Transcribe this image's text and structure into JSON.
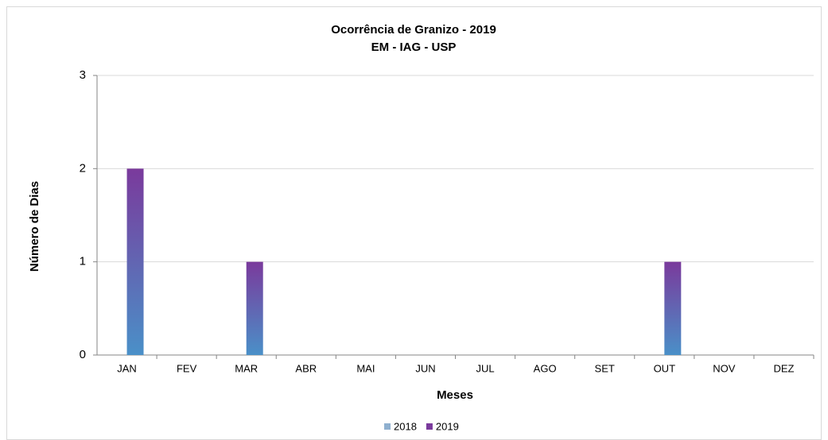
{
  "chart_data": {
    "type": "bar",
    "title": "Ocorrência de Granizo - 2019",
    "subtitle": "EM - IAG - USP",
    "x_label": "Meses",
    "y_label": "Número de Dias",
    "categories": [
      "JAN",
      "FEV",
      "MAR",
      "ABR",
      "MAI",
      "JUN",
      "JUL",
      "AGO",
      "SET",
      "OUT",
      "NOV",
      "DEZ"
    ],
    "series": [
      {
        "name": "2018",
        "color": "#8fb0cf",
        "values": [
          0,
          0,
          0,
          0,
          0,
          0,
          0,
          0,
          0,
          0,
          0,
          0
        ]
      },
      {
        "name": "2019",
        "color": "#7a3a9c",
        "values": [
          2,
          0,
          1,
          0,
          0,
          0,
          0,
          0,
          0,
          1,
          0,
          0
        ]
      }
    ],
    "ylim": [
      0,
      3
    ],
    "yticks": [
      0,
      1,
      2,
      3
    ],
    "grid": true,
    "legend": "bottom"
  }
}
